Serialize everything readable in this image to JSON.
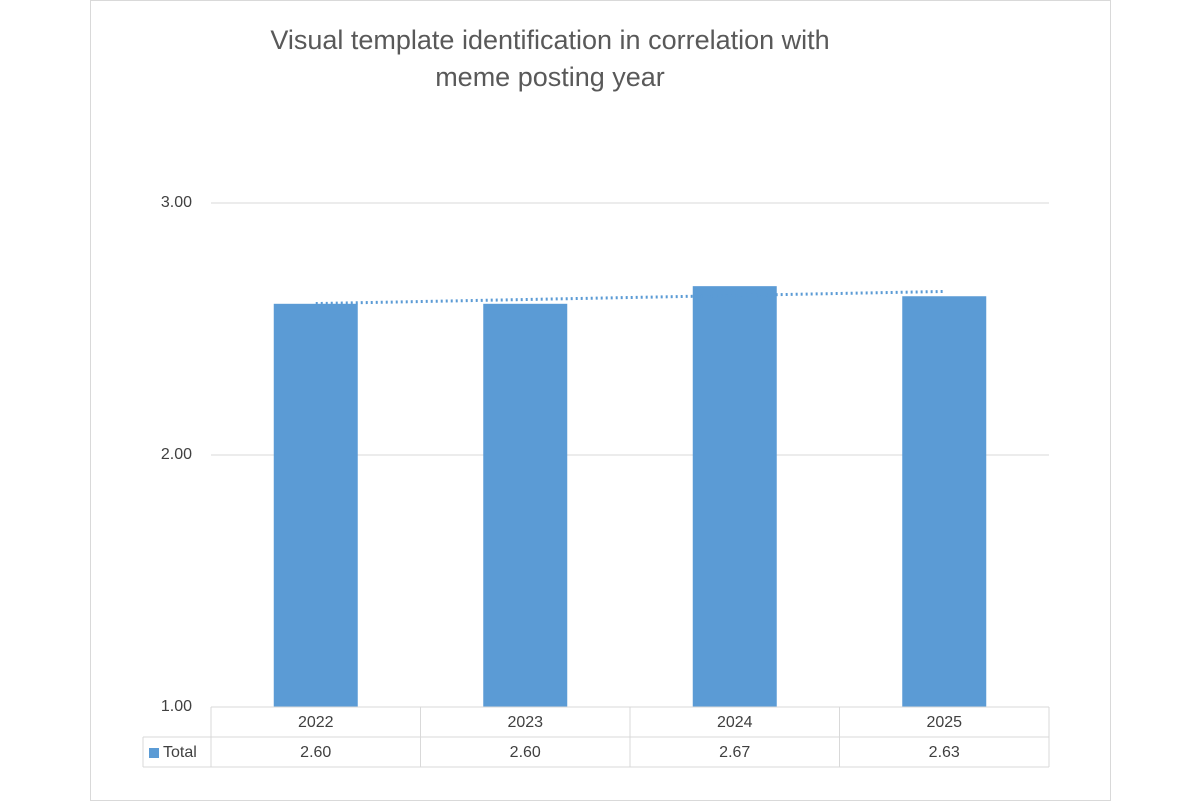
{
  "chart_data": {
    "type": "bar",
    "title": [
      "Visual template identification in correlation with",
      "meme posting year"
    ],
    "categories": [
      "2022",
      "2023",
      "2024",
      "2025"
    ],
    "series": [
      {
        "name": "Total",
        "color": "#5b9bd5",
        "values": [
          2.6,
          2.6,
          2.67,
          2.63
        ],
        "value_labels": [
          "2.60",
          "2.60",
          "2.67",
          "2.63"
        ]
      }
    ],
    "ylim": [
      1,
      3
    ],
    "yticks": [
      {
        "value": 1,
        "label": "1.00"
      },
      {
        "value": 2,
        "label": "2.00"
      },
      {
        "value": 3,
        "label": "3.00"
      }
    ],
    "grid": true,
    "trendline": "linear",
    "data_table": true
  }
}
